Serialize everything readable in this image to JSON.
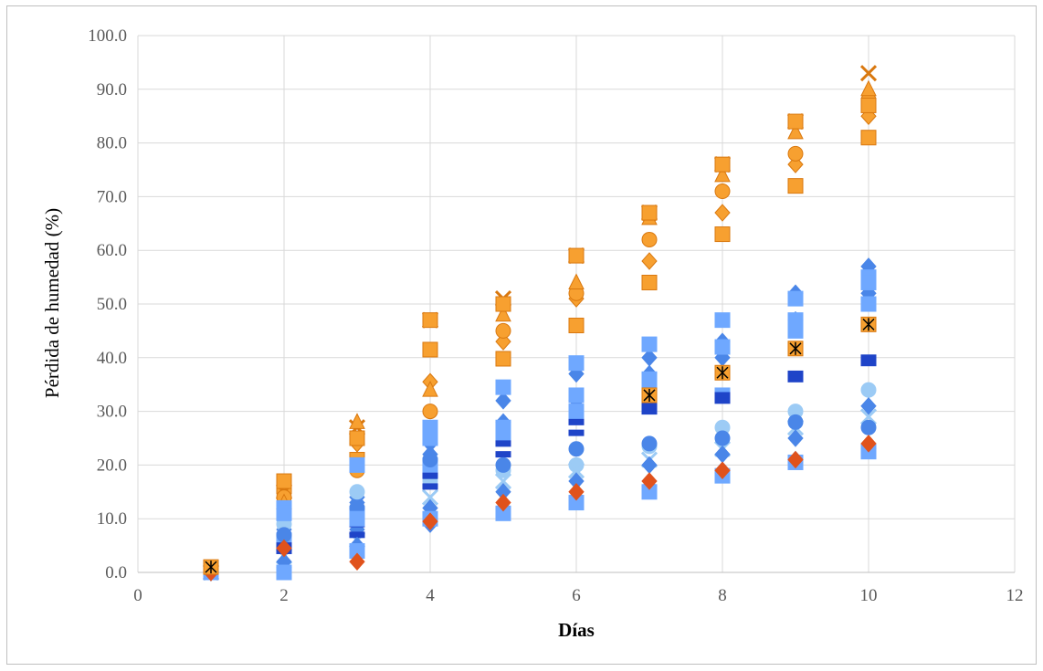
{
  "chart_data": {
    "type": "scatter",
    "xlabel": "Días",
    "ylabel": "Pérdida de humedad (%)",
    "xlim": [
      0,
      12
    ],
    "ylim": [
      0,
      100
    ],
    "x_ticks": [
      "0",
      "2",
      "4",
      "6",
      "8",
      "10",
      "12"
    ],
    "y_ticks": [
      "0.0",
      "10.0",
      "20.0",
      "30.0",
      "40.0",
      "50.0",
      "60.0",
      "70.0",
      "80.0",
      "90.0",
      "100.0"
    ],
    "grid": true,
    "legend": "none",
    "colors": {
      "orange_series": "#f7a030",
      "orange_edge": "#d9780f",
      "blue_series": "#4a86e8",
      "light_blue_series": "#6fa8ff",
      "pale_blue_series": "#9ccbf5",
      "dark_blue_series": "#1f44c8",
      "red_orange": "#e0521c",
      "black_marker": "#000000"
    },
    "series": [
      {
        "group": "orange",
        "color": "#f7a030",
        "marker": "square",
        "points": [
          [
            1,
            0
          ],
          [
            2,
            16
          ],
          [
            3,
            21
          ],
          [
            4,
            41.5
          ],
          [
            5,
            39.8
          ],
          [
            6,
            46
          ],
          [
            7,
            54
          ],
          [
            8,
            63
          ],
          [
            9,
            72
          ],
          [
            10,
            81
          ]
        ]
      },
      {
        "group": "orange",
        "color": "#f7a030",
        "marker": "cross",
        "points": [
          [
            1,
            0
          ],
          [
            2,
            15
          ],
          [
            3,
            27
          ],
          [
            4,
            47
          ],
          [
            5,
            51
          ],
          [
            6,
            59
          ],
          [
            7,
            67
          ],
          [
            8,
            76
          ],
          [
            9,
            84
          ],
          [
            10,
            93
          ]
        ]
      },
      {
        "group": "orange",
        "color": "#f7a030",
        "marker": "diamond",
        "points": [
          [
            1,
            0
          ],
          [
            2,
            14
          ],
          [
            3,
            24
          ],
          [
            4,
            35.5
          ],
          [
            5,
            43
          ],
          [
            6,
            51
          ],
          [
            7,
            58
          ],
          [
            8,
            67
          ],
          [
            9,
            76
          ],
          [
            10,
            85
          ]
        ]
      },
      {
        "group": "orange",
        "color": "#f7a030",
        "marker": "circle",
        "points": [
          [
            1,
            0
          ],
          [
            2,
            14
          ],
          [
            3,
            19
          ],
          [
            4,
            30
          ],
          [
            5,
            45
          ],
          [
            6,
            52
          ],
          [
            7,
            62
          ],
          [
            8,
            71
          ],
          [
            9,
            78
          ],
          [
            10,
            88
          ]
        ]
      },
      {
        "group": "orange",
        "color": "#f7a030",
        "marker": "triangle",
        "points": [
          [
            1,
            0
          ],
          [
            2,
            13
          ],
          [
            3,
            28
          ],
          [
            4,
            34
          ],
          [
            5,
            48
          ],
          [
            6,
            54
          ],
          [
            7,
            66
          ],
          [
            8,
            74
          ],
          [
            9,
            82
          ],
          [
            10,
            90
          ]
        ]
      },
      {
        "group": "orange",
        "color": "#f7a030",
        "marker": "square",
        "points": [
          [
            1,
            0
          ],
          [
            2,
            17
          ],
          [
            3,
            25
          ],
          [
            4,
            47
          ],
          [
            5,
            50
          ],
          [
            6,
            59
          ],
          [
            7,
            67
          ],
          [
            8,
            76
          ],
          [
            9,
            84
          ],
          [
            10,
            87
          ]
        ]
      },
      {
        "group": "blue",
        "color": "#4a86e8",
        "marker": "diamond",
        "points": [
          [
            1,
            0
          ],
          [
            2,
            10
          ],
          [
            3,
            13
          ],
          [
            4,
            24
          ],
          [
            5,
            32
          ],
          [
            6,
            37
          ],
          [
            7,
            40
          ],
          [
            8,
            43
          ],
          [
            9,
            52
          ],
          [
            10,
            57
          ]
        ]
      },
      {
        "group": "blue",
        "color": "#6fa8ff",
        "marker": "square",
        "points": [
          [
            1,
            0
          ],
          [
            2,
            12
          ],
          [
            3,
            20
          ],
          [
            4,
            27
          ],
          [
            5,
            34.5
          ],
          [
            6,
            39
          ],
          [
            7,
            42.5
          ],
          [
            8,
            47
          ],
          [
            9,
            51
          ],
          [
            10,
            55
          ]
        ]
      },
      {
        "group": "blue",
        "color": "#4a86e8",
        "marker": "diamond",
        "points": [
          [
            1,
            0
          ],
          [
            2,
            8
          ],
          [
            3,
            14
          ],
          [
            4,
            22
          ],
          [
            5,
            28
          ],
          [
            6,
            32
          ],
          [
            7,
            37
          ],
          [
            8,
            40
          ],
          [
            9,
            47
          ],
          [
            10,
            52
          ]
        ]
      },
      {
        "group": "blue",
        "color": "#6fa8ff",
        "marker": "square",
        "points": [
          [
            1,
            0
          ],
          [
            2,
            6
          ],
          [
            3,
            11
          ],
          [
            4,
            20
          ],
          [
            5,
            26
          ],
          [
            6,
            30
          ],
          [
            7,
            35
          ],
          [
            8,
            33
          ],
          [
            9,
            45
          ],
          [
            10,
            50
          ]
        ]
      },
      {
        "group": "blue",
        "color": "#9ccbf5",
        "marker": "circle",
        "points": [
          [
            1,
            0
          ],
          [
            2,
            9
          ],
          [
            3,
            15
          ],
          [
            4,
            17
          ],
          [
            5,
            19
          ],
          [
            6,
            20
          ],
          [
            7,
            23.5
          ],
          [
            8,
            27
          ],
          [
            9,
            30
          ],
          [
            10,
            34
          ]
        ]
      },
      {
        "group": "blue",
        "color": "#9ccbf5",
        "marker": "cross",
        "points": [
          [
            1,
            0
          ],
          [
            2,
            3
          ],
          [
            3,
            6
          ],
          [
            4,
            14
          ],
          [
            5,
            17
          ],
          [
            6,
            19
          ],
          [
            7,
            21
          ],
          [
            8,
            23
          ],
          [
            9,
            27
          ],
          [
            10,
            29
          ]
        ]
      },
      {
        "group": "blue",
        "color": "#4a86e8",
        "marker": "diamond",
        "points": [
          [
            1,
            0
          ],
          [
            2,
            2
          ],
          [
            3,
            8
          ],
          [
            4,
            12
          ],
          [
            5,
            15
          ],
          [
            6,
            17
          ],
          [
            7,
            20
          ],
          [
            8,
            22
          ],
          [
            9,
            25
          ],
          [
            10,
            31
          ]
        ]
      },
      {
        "group": "blue",
        "color": "#1f44c8",
        "marker": "dash",
        "points": [
          [
            1,
            0
          ],
          [
            2,
            4
          ],
          [
            3,
            7
          ],
          [
            4,
            16
          ],
          [
            5,
            22
          ],
          [
            6,
            26
          ],
          [
            7,
            31
          ],
          [
            8,
            33
          ],
          [
            9,
            37
          ],
          [
            10,
            40
          ]
        ]
      },
      {
        "group": "blue",
        "color": "#1f44c8",
        "marker": "dash",
        "points": [
          [
            1,
            0
          ],
          [
            2,
            5
          ],
          [
            3,
            9
          ],
          [
            4,
            18
          ],
          [
            5,
            24
          ],
          [
            6,
            28
          ],
          [
            7,
            30
          ],
          [
            8,
            32
          ],
          [
            9,
            36
          ],
          [
            10,
            39
          ]
        ]
      },
      {
        "group": "blue",
        "color": "#4a86e8",
        "marker": "diamond",
        "points": [
          [
            1,
            0
          ],
          [
            2,
            1
          ],
          [
            3,
            5
          ],
          [
            4,
            9
          ],
          [
            5,
            12
          ],
          [
            6,
            14
          ],
          [
            7,
            16
          ],
          [
            8,
            19
          ],
          [
            9,
            21
          ],
          [
            10,
            23
          ]
        ]
      },
      {
        "group": "blue",
        "color": "#6fa8ff",
        "marker": "square",
        "points": [
          [
            1,
            0
          ],
          [
            2,
            0
          ],
          [
            3,
            4
          ],
          [
            4,
            10
          ],
          [
            5,
            11
          ],
          [
            6,
            13
          ],
          [
            7,
            15
          ],
          [
            8,
            18
          ],
          [
            9,
            20.5
          ],
          [
            10,
            22.5
          ]
        ]
      },
      {
        "group": "blue",
        "color": "#4a86e8",
        "marker": "circle",
        "points": [
          [
            1,
            0
          ],
          [
            2,
            7
          ],
          [
            3,
            12
          ],
          [
            4,
            21
          ],
          [
            5,
            20
          ],
          [
            6,
            23
          ],
          [
            7,
            24
          ],
          [
            8,
            25
          ],
          [
            9,
            28
          ],
          [
            10,
            27
          ]
        ]
      },
      {
        "group": "blue",
        "color": "#6fa8ff",
        "marker": "square",
        "points": [
          [
            1,
            0
          ],
          [
            2,
            11
          ],
          [
            3,
            10
          ],
          [
            4,
            25
          ],
          [
            5,
            27
          ],
          [
            6,
            33
          ],
          [
            7,
            36
          ],
          [
            8,
            42
          ],
          [
            9,
            47
          ],
          [
            10,
            54
          ]
        ]
      },
      {
        "group": "mixed",
        "color": "#e0521c",
        "marker": "diamond",
        "points": [
          [
            1,
            0
          ],
          [
            2,
            4.5
          ],
          [
            3,
            2
          ],
          [
            4,
            9.5
          ],
          [
            5,
            13
          ],
          [
            6,
            15
          ],
          [
            7,
            17
          ],
          [
            8,
            19
          ],
          [
            9,
            21
          ],
          [
            10,
            24
          ]
        ]
      },
      {
        "group": "mixed",
        "color": "#000000",
        "marker": "asterisk",
        "points": [
          [
            1,
            1
          ],
          [
            7,
            33
          ],
          [
            8,
            37.2
          ],
          [
            9,
            41.7
          ],
          [
            10,
            46.2
          ]
        ]
      }
    ]
  }
}
